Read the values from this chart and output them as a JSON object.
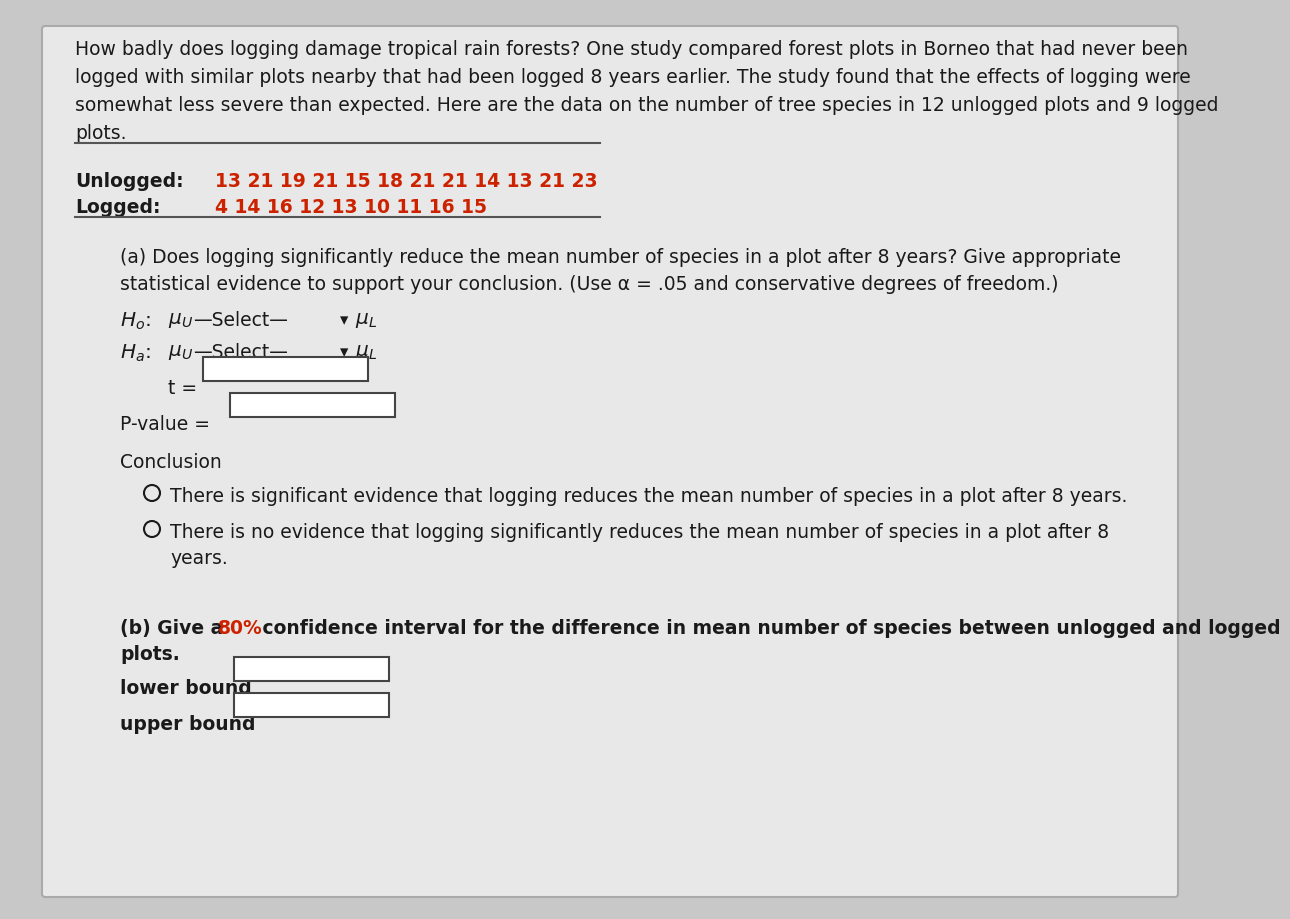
{
  "bg_outer": "#c8c8c8",
  "bg_paper": "#e8e8e8",
  "text_color": "#1a1a1a",
  "red_color": "#cc2200",
  "box_fill": "#ffffff",
  "box_edge": "#444444",
  "line_color": "#555555",
  "intro_line1": "How badly does logging damage tropical rain forests? One study compared forest plots in Borneo that had never been",
  "intro_line2": "logged with similar plots nearby that had been logged 8 years earlier. The study found that the effects of logging were",
  "intro_line3": "somewhat less severe than expected. Here are the data on the number of tree species in 12 unlogged plots and 9 logged",
  "intro_line4": "plots.",
  "unlogged_label": "Unlogged:",
  "unlogged_data": "13 21 19 21 15 18 21 21 14 13 21 23",
  "logged_label": "Logged:",
  "logged_indent": "    ",
  "logged_data": "4 14 16 12 13 10 11 16 15",
  "part_a_line1": "(a) Does logging significantly reduce the mean number of species in a plot after 8 years? Give appropriate",
  "part_a_line2": "statistical evidence to support your conclusion. (Use α = .05 and conservative degrees of freedom.)",
  "conclusion_label": "Conclusion",
  "conclusion1": "There is significant evidence that logging reduces the mean number of species in a plot after 8 years.",
  "conclusion2_line1": "There is no evidence that logging significantly reduces the mean number of species in a plot after 8",
  "conclusion2_line2": "years.",
  "part_b_prefix": "(b) Give a ",
  "part_b_pct": "80%",
  "part_b_suffix": " confidence interval for the difference in mean number of species between unlogged and logged",
  "part_b_line2": "plots.",
  "lower_bound_label": "lower bound",
  "upper_bound_label": "upper bound"
}
